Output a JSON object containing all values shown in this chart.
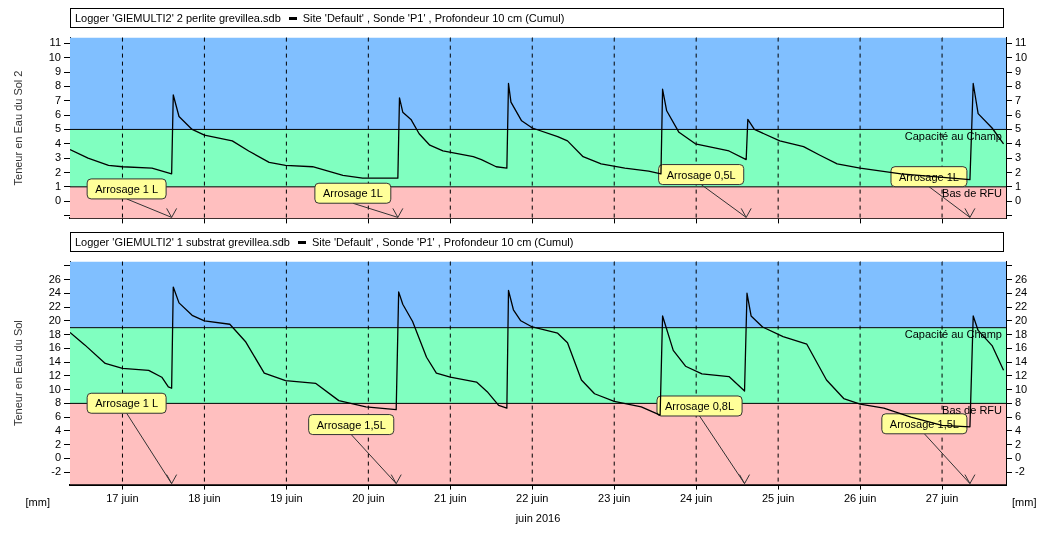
{
  "chart_data": [
    {
      "type": "line",
      "title": "Logger 'GIEMULTI2' 2 perlite grevillea.sdb",
      "ylabel": "Teneur en Eau du Sol 2",
      "legend": "top",
      "grid": "x",
      "tick_labels": "y",
      "xlim": [
        16.36,
        27.78
      ],
      "xticks": [
        {
          "value": 17,
          "label": null
        },
        {
          "value": 18,
          "label": null
        },
        {
          "value": 19,
          "label": null
        },
        {
          "value": 20,
          "label": null
        },
        {
          "value": 21,
          "label": null
        },
        {
          "value": 22,
          "label": null
        },
        {
          "value": 23,
          "label": null
        },
        {
          "value": 24,
          "label": null
        },
        {
          "value": 25,
          "label": null
        },
        {
          "value": 26,
          "label": null
        },
        {
          "value": 27,
          "label": null
        }
      ],
      "ylim": [
        -1.2,
        11.4
      ],
      "yticks": [
        {
          "value": -1,
          "label": null
        },
        0,
        1,
        2,
        3,
        4,
        5,
        6,
        7,
        8,
        9,
        10,
        11
      ],
      "y2lim": [
        -1.2,
        11.4
      ],
      "y2ticks": [
        {
          "value": -1,
          "label": null
        },
        0,
        1,
        2,
        3,
        4,
        5,
        6,
        7,
        8,
        9,
        10,
        11
      ],
      "bands": [
        {
          "axis": "y",
          "from": -1.2,
          "to": 1,
          "color": "#ffbfbf"
        },
        {
          "axis": "y",
          "from": 1,
          "to": 5,
          "color": "#80ffc0"
        },
        {
          "axis": "y",
          "from": 5,
          "to": 11.4,
          "color": "#80bfff"
        }
      ],
      "ref_lines": [
        {
          "axis": "y",
          "value": 5,
          "label": "Capacité au Champ",
          "color": "#000000"
        },
        {
          "axis": "y",
          "value": 1,
          "label": "Bas de RFU",
          "color": "#000000"
        }
      ],
      "annotations": [
        {
          "text": "Arrosage 1 L",
          "x": 17.6,
          "y": 1.9
        },
        {
          "text": "Arrosage 1L",
          "x": 20.36,
          "y": 1.6
        },
        {
          "text": "Arrosage 0,5L",
          "x": 24.61,
          "y": 2.9
        },
        {
          "text": "Arrosage 1L",
          "x": 27.34,
          "y": 1.5
        }
      ],
      "series": [
        {
          "name": "Site 'Default' , Sonde 'P1' , Profondeur 10 cm (Cumul)",
          "color": "#000000",
          "x": [
            16.36,
            16.58,
            16.83,
            17.0,
            17.36,
            17.6,
            17.62,
            17.69,
            17.85,
            18.0,
            18.34,
            18.54,
            18.79,
            18.99,
            19.32,
            19.69,
            19.93,
            20.36,
            20.38,
            20.42,
            20.52,
            20.62,
            20.75,
            20.91,
            21.28,
            21.38,
            21.56,
            21.69,
            21.71,
            21.74,
            21.87,
            22.0,
            22.31,
            22.43,
            22.62,
            22.84,
            23.13,
            23.42,
            23.57,
            23.59,
            23.64,
            23.79,
            23.99,
            24.24,
            24.4,
            24.61,
            24.63,
            24.71,
            25.02,
            25.31,
            25.51,
            25.72,
            26.0,
            26.5,
            27.34,
            27.38,
            27.44,
            27.61,
            27.75
          ],
          "values": [
            3.6,
            3.0,
            2.5,
            2.4,
            2.3,
            1.9,
            7.4,
            5.9,
            5.0,
            4.6,
            4.2,
            3.5,
            2.7,
            2.5,
            2.4,
            1.8,
            1.6,
            1.6,
            7.2,
            6.2,
            5.7,
            4.7,
            3.9,
            3.5,
            3.1,
            2.9,
            2.4,
            2.3,
            8.2,
            6.9,
            5.6,
            5.1,
            4.5,
            4.2,
            3.1,
            2.6,
            2.3,
            2.1,
            1.9,
            7.8,
            6.3,
            4.8,
            4.0,
            3.7,
            3.5,
            2.9,
            5.7,
            5.0,
            4.2,
            3.8,
            3.2,
            2.6,
            2.3,
            1.9,
            1.5,
            8.2,
            6.1,
            5.1,
            4.0
          ]
        }
      ]
    },
    {
      "type": "line",
      "title": "Logger 'GIEMULTI2' 1 substrat grevillea.sdb",
      "ylabel": "Teneur en Eau du Sol",
      "xlabel": "juin 2016",
      "legend": "top",
      "grid": "x",
      "xlim": [
        16.36,
        27.78
      ],
      "xticks": [
        {
          "value": 17,
          "label": "17 juin"
        },
        {
          "value": 18,
          "label": "18 juin"
        },
        {
          "value": 19,
          "label": "19 juin"
        },
        {
          "value": 20,
          "label": "20 juin"
        },
        {
          "value": 21,
          "label": "21 juin"
        },
        {
          "value": 22,
          "label": "22 juin"
        },
        {
          "value": 23,
          "label": "23 juin"
        },
        {
          "value": 24,
          "label": "24 juin"
        },
        {
          "value": 25,
          "label": "25 juin"
        },
        {
          "value": 26,
          "label": "26 juin"
        },
        {
          "value": 27,
          "label": "27 juin"
        }
      ],
      "ylim": [
        -3.8,
        28.6
      ],
      "yticks": [
        -2,
        0,
        2,
        4,
        6,
        8,
        10,
        12,
        14,
        16,
        18,
        20,
        22,
        24,
        26,
        {
          "value": 28,
          "label": null
        }
      ],
      "y2lim": [
        -3.8,
        28.6
      ],
      "y2ticks": [
        -2,
        0,
        2,
        4,
        6,
        8,
        10,
        12,
        14,
        16,
        18,
        20,
        22,
        24,
        26,
        {
          "value": 28,
          "label": null
        }
      ],
      "bands": [
        {
          "axis": "y",
          "from": -3.8,
          "to": 8,
          "color": "#ffbfbf"
        },
        {
          "axis": "y",
          "from": 8,
          "to": 19,
          "color": "#80ffc0"
        },
        {
          "axis": "y",
          "from": 19,
          "to": 28.6,
          "color": "#80bfff"
        }
      ],
      "ref_lines": [
        {
          "axis": "y",
          "value": 19,
          "label": "Capacité au Champ",
          "color": "#000000"
        },
        {
          "axis": "y",
          "value": 8,
          "label": "Bas de RFU",
          "color": "#000000"
        }
      ],
      "annotations": [
        {
          "text": "Arrosage 1 L",
          "x": 17.6,
          "y": 10.2
        },
        {
          "text": "Arrosage 1,5L",
          "x": 20.34,
          "y": 7.1
        },
        {
          "text": "Arrosage 0,8L",
          "x": 24.59,
          "y": 9.8
        },
        {
          "text": "Arrosage 1,5L",
          "x": 27.34,
          "y": 4.6
        },
        "[mm]",
        "[mm]"
      ],
      "series": [
        {
          "name": "Site 'Default' , Sonde 'P1' , Profondeur 10 cm (Cumul)",
          "color": "#000000",
          "x": [
            16.36,
            16.54,
            16.79,
            17.0,
            17.32,
            17.48,
            17.56,
            17.6,
            17.62,
            17.69,
            17.85,
            18.0,
            18.31,
            18.5,
            18.73,
            18.99,
            19.36,
            19.64,
            19.97,
            20.34,
            20.37,
            20.42,
            20.54,
            20.71,
            20.83,
            21.0,
            21.32,
            21.45,
            21.59,
            21.69,
            21.71,
            21.77,
            21.86,
            22.0,
            22.31,
            22.43,
            22.6,
            22.76,
            23.0,
            23.33,
            23.56,
            23.59,
            23.72,
            23.87,
            24.07,
            24.4,
            24.59,
            24.62,
            24.67,
            24.81,
            25.06,
            25.35,
            25.59,
            25.8,
            26.0,
            26.29,
            26.62,
            27.0,
            27.34,
            27.38,
            27.44,
            27.61,
            27.75
          ],
          "values": [
            18.3,
            16.5,
            13.8,
            13.1,
            12.8,
            11.8,
            10.4,
            10.2,
            24.9,
            22.6,
            20.8,
            20.0,
            19.5,
            17.0,
            12.4,
            11.3,
            10.9,
            8.4,
            7.5,
            7.1,
            24.2,
            22.4,
            19.9,
            14.7,
            12.4,
            11.8,
            11.1,
            9.7,
            7.7,
            7.3,
            24.4,
            21.6,
            20.0,
            19.1,
            18.2,
            16.8,
            11.4,
            9.4,
            8.3,
            7.5,
            6.3,
            20.7,
            15.7,
            13.4,
            12.3,
            11.9,
            9.8,
            24.0,
            20.7,
            19.1,
            17.7,
            16.6,
            11.4,
            8.7,
            7.9,
            7.3,
            6.0,
            4.8,
            4.6,
            20.7,
            18.6,
            16.4,
            12.8
          ]
        }
      ]
    }
  ]
}
